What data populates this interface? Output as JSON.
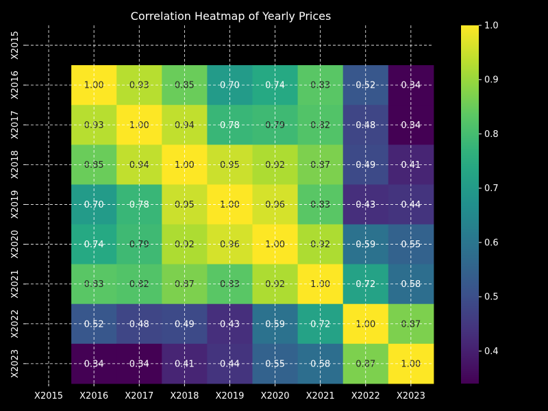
{
  "chart_data": {
    "type": "heatmap",
    "title": "Correlation Heatmap of Yearly Prices",
    "categories": [
      "X2015",
      "X2016",
      "X2017",
      "X2018",
      "X2019",
      "X2020",
      "X2021",
      "X2022",
      "X2023"
    ],
    "matrix": [
      [
        null,
        null,
        null,
        null,
        null,
        null,
        null,
        null,
        null
      ],
      [
        null,
        1.0,
        0.93,
        0.85,
        0.7,
        0.74,
        0.83,
        0.52,
        0.34
      ],
      [
        null,
        0.93,
        1.0,
        0.94,
        0.78,
        0.79,
        0.82,
        0.48,
        0.34
      ],
      [
        null,
        0.85,
        0.94,
        1.0,
        0.95,
        0.92,
        0.87,
        0.49,
        0.41
      ],
      [
        null,
        0.7,
        0.78,
        0.95,
        1.0,
        0.96,
        0.83,
        0.43,
        0.44
      ],
      [
        null,
        0.74,
        0.79,
        0.92,
        0.96,
        1.0,
        0.92,
        0.59,
        0.55
      ],
      [
        null,
        0.83,
        0.82,
        0.87,
        0.83,
        0.92,
        1.0,
        0.72,
        0.58
      ],
      [
        null,
        0.52,
        0.48,
        0.49,
        0.43,
        0.59,
        0.72,
        1.0,
        0.87
      ],
      [
        null,
        0.34,
        0.34,
        0.41,
        0.44,
        0.55,
        0.58,
        0.87,
        1.0
      ]
    ],
    "colormap": "viridis",
    "color_range": [
      0.34,
      1.0
    ],
    "colorbar_ticks": [
      0.4,
      0.5,
      0.6,
      0.7,
      0.8,
      0.9,
      1.0
    ],
    "grid": true,
    "colors": {
      "background": "#000000",
      "text": "#ffffff",
      "grid": "#ffffff"
    }
  }
}
